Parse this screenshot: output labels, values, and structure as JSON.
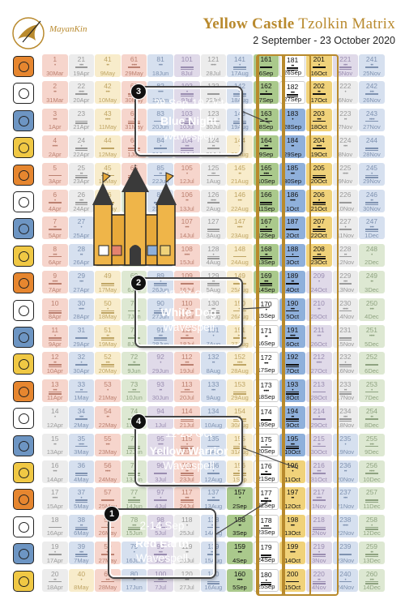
{
  "logo": {
    "text": "MayanKin",
    "color": "#b98a2e"
  },
  "title": {
    "part1": "Yellow Castle",
    "part2": "Tzolkin Matrix"
  },
  "subtitle": "2 September - 23 October 2020",
  "colors": {
    "red": "#e6862f",
    "white": "#ffffff",
    "blue": "#6d95c3",
    "yellow": "#f0c844",
    "gold": "#b88a2c"
  },
  "callouts": [
    {
      "number": "3",
      "dates": "28 Sep-10 Oct",
      "name": "Blue Night",
      "word": "Wavespell",
      "color": "#2a78c4"
    },
    {
      "number": "2",
      "dates": "15-27 Sep",
      "name": "White Dog",
      "word": "Wavespell",
      "color": "#868789"
    },
    {
      "number": "4",
      "dates": "11-23 Oct",
      "name": "Yellow Warrior",
      "word": "Wavespell",
      "color": "#c79a2a"
    },
    {
      "number": "1",
      "dates": "2-14 Sep",
      "name": "Red Earth",
      "word": "Wavespell",
      "color": "#8f2424"
    }
  ],
  "castle": {
    "icon": "castle-icon"
  },
  "columns": [
    {
      "kin": [
        1,
        2,
        3,
        4,
        5,
        6,
        7,
        8,
        9,
        10,
        11,
        12,
        13,
        14,
        15,
        16,
        17,
        18,
        19,
        20
      ],
      "dates": [
        "30Mar",
        "31Mar",
        "1Apr",
        "2Apr",
        "3Apr",
        "4Apr",
        "5Apr",
        "6Apr",
        "7Apr",
        "8Apr",
        "9Apr",
        "10Apr",
        "11Apr",
        "12Apr",
        "13Apr",
        "14Apr",
        "15Apr",
        "16Apr",
        "17Apr",
        "18Apr"
      ]
    },
    {
      "kin": [
        21,
        22,
        23,
        24,
        25,
        26,
        27,
        28,
        29,
        30,
        31,
        32,
        33,
        34,
        35,
        36,
        37,
        38,
        39,
        40
      ],
      "dates": [
        "19Apr",
        "20Apr",
        "21Apr",
        "22Apr",
        "23Apr",
        "24Apr",
        "25Apr",
        "26Apr",
        "27Apr",
        "28Apr",
        "29Apr",
        "30Apr",
        "1May",
        "2May",
        "3May",
        "4May",
        "5May",
        "6May",
        "7May",
        "8May"
      ]
    },
    {
      "kin": [
        41,
        42,
        43,
        44,
        45,
        46,
        47,
        48,
        49,
        50,
        51,
        52,
        53,
        54,
        55,
        56,
        57,
        58,
        59,
        60
      ],
      "dates": [
        "9May",
        "10May",
        "11May",
        "12May",
        "13May",
        "14May",
        "15May",
        "16May",
        "17May",
        "18May",
        "19May",
        "20May",
        "21May",
        "22May",
        "23May",
        "24May",
        "25May",
        "26May",
        "27May",
        "28May"
      ]
    },
    {
      "kin": [
        61,
        62,
        63,
        64,
        65,
        66,
        67,
        68,
        69,
        70,
        71,
        72,
        73,
        74,
        75,
        76,
        77,
        78,
        79,
        80
      ],
      "dates": [
        "29May",
        "30May",
        "31May",
        "1Jun",
        "2Jun",
        "3Jun",
        "4Jun",
        "5Jun",
        "6Jun",
        "7Jun",
        "8Jun",
        "9Jun",
        "10Jun",
        "11Jun",
        "12Jun",
        "13Jun",
        "14Jun",
        "15Jun",
        "16Jun",
        "17Jun"
      ]
    },
    {
      "kin": [
        81,
        82,
        83,
        84,
        85,
        86,
        87,
        88,
        89,
        90,
        91,
        92,
        93,
        94,
        95,
        96,
        97,
        98,
        99,
        100
      ],
      "dates": [
        "18Jun",
        "19Jun",
        "20Jun",
        "21Jun",
        "22Jun",
        "23Jun",
        "24Jun",
        "25Jun",
        "26Jun",
        "27Jun",
        "28Jun",
        "29Jun",
        "30Jun",
        "1Jul",
        "2Jul",
        "3Jul",
        "4Jul",
        "5Jul",
        "6Jul",
        "7Jul"
      ]
    },
    {
      "kin": [
        101,
        102,
        103,
        104,
        105,
        106,
        107,
        108,
        109,
        110,
        111,
        112,
        113,
        114,
        115,
        116,
        117,
        118,
        119,
        120
      ],
      "dates": [
        "8Jul",
        "9Jul",
        "10Jul",
        "11Jul",
        "12Jul",
        "13Jul",
        "14Jul",
        "15Jul",
        "16Jul",
        "17Jul",
        "18Jul",
        "19Jul",
        "20Jul",
        "21Jul",
        "22Jul",
        "23Jul",
        "24Jul",
        "25Jul",
        "26Jul",
        "27Jul"
      ]
    },
    {
      "kin": [
        121,
        122,
        123,
        124,
        125,
        126,
        127,
        128,
        129,
        130,
        131,
        132,
        133,
        134,
        135,
        136,
        137,
        138,
        139,
        140
      ],
      "dates": [
        "28Jul",
        "29Jul",
        "30Jul",
        "31Jul",
        "1Aug",
        "2Aug",
        "3Aug",
        "4Aug",
        "5Aug",
        "6Aug",
        "7Aug",
        "8Aug",
        "9Aug",
        "10Aug",
        "11Aug",
        "12Aug",
        "13Aug",
        "14Aug",
        "15Aug",
        "16Aug"
      ]
    },
    {
      "kin": [
        141,
        142,
        143,
        144,
        145,
        146,
        147,
        148,
        149,
        150,
        151,
        152,
        153,
        154,
        155,
        156,
        157,
        158,
        159,
        160
      ],
      "dates": [
        "17Aug",
        "18Aug",
        "19Aug",
        "20Aug",
        "21Aug",
        "22Aug",
        "23Aug",
        "24Aug",
        "25Aug",
        "26Aug",
        "27Aug",
        "28Aug",
        "29Aug",
        "30Aug",
        "31Aug",
        "1Sep",
        "2Sep",
        "3Sep",
        "4Sep",
        "5Sep"
      ]
    },
    {
      "kin": [
        161,
        162,
        163,
        164,
        165,
        166,
        167,
        168,
        169,
        170,
        171,
        172,
        173,
        174,
        175,
        176,
        177,
        178,
        179,
        180
      ],
      "dates": [
        "6Sep",
        "7Sep",
        "8Sep",
        "9Sep",
        "10Sep",
        "11Sep",
        "12Sep",
        "13Sep",
        "14Sep",
        "15Sep",
        "16Sep",
        "17Sep",
        "18Sep",
        "19Sep",
        "20Sep",
        "21Sep",
        "22Sep",
        "23Sep",
        "24Sep",
        "25Sep"
      ]
    },
    {
      "kin": [
        181,
        182,
        183,
        184,
        185,
        186,
        187,
        188,
        189,
        190,
        191,
        192,
        193,
        194,
        195,
        196,
        197,
        198,
        199,
        200
      ],
      "dates": [
        "26Sep",
        "27Sep",
        "28Sep",
        "29Sep",
        "30Sep",
        "1Oct",
        "2Oct",
        "3Oct",
        "4Oct",
        "5Oct",
        "6Oct",
        "7Oct",
        "8Oct",
        "9Oct",
        "10Oct",
        "11Oct",
        "12Oct",
        "13Oct",
        "14Oct",
        "15Oct"
      ]
    },
    {
      "kin": [
        201,
        202,
        203,
        204,
        205,
        206,
        207,
        208,
        209,
        210,
        211,
        212,
        213,
        214,
        215,
        216,
        217,
        218,
        219,
        220
      ],
      "dates": [
        "16Oct",
        "17Oct",
        "18Oct",
        "19Oct",
        "20Oct",
        "21Oct",
        "22Oct",
        "23Oct",
        "24Oct",
        "25Oct",
        "26Oct",
        "27Oct",
        "28Oct",
        "29Oct",
        "30Oct",
        "31Oct",
        "1Nov",
        "2Nov",
        "3Nov",
        "4Nov"
      ]
    },
    {
      "kin": [
        221,
        222,
        223,
        224,
        225,
        226,
        227,
        228,
        229,
        230,
        231,
        232,
        233,
        234,
        235,
        236,
        237,
        238,
        239,
        240
      ],
      "dates": [
        "5Nov",
        "6Nov",
        "7Nov",
        "8Nov",
        "9Nov",
        "10Nov",
        "11Nov",
        "12Nov",
        "13Nov",
        "14Nov",
        "15Nov",
        "16Nov",
        "17Nov",
        "18Nov",
        "19Nov",
        "20Nov",
        "21Nov",
        "22Nov",
        "23Nov",
        "24Nov"
      ]
    },
    {
      "kin": [
        241,
        242,
        243,
        244,
        245,
        246,
        247,
        248,
        249,
        250,
        251,
        252,
        253,
        254,
        255,
        256,
        257,
        258,
        259,
        260
      ],
      "dates": [
        "25Nov",
        "26Nov",
        "27Nov",
        "28Nov",
        "29Nov",
        "30Nov",
        "1Dec",
        "2Dec",
        "3Dec",
        "4Dec",
        "5Dec",
        "6Dec",
        "7Dec",
        "8Dec",
        "9Dec",
        "10Dec",
        "11Dec",
        "12Dec",
        "13Dec",
        "14Dec"
      ]
    }
  ],
  "highlight_range": [
    157,
    208
  ]
}
